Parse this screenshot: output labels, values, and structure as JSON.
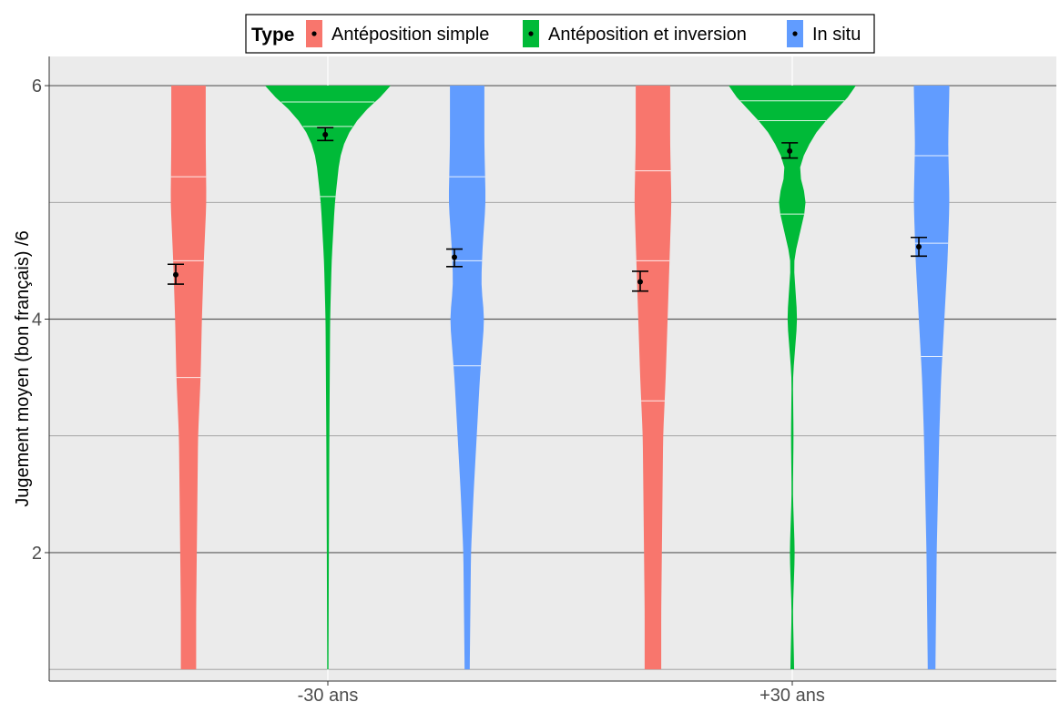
{
  "chart_data": {
    "type": "violin",
    "title": "",
    "xlabel": "",
    "ylabel": "Jugement moyen (bon français) /6",
    "ylim": [
      0.9,
      6.25
    ],
    "yticks": [
      2,
      4,
      6
    ],
    "grid": true,
    "legend": {
      "title": "Type",
      "position": "top"
    },
    "categories": [
      "-30 ans",
      "+30 ans"
    ],
    "series": [
      {
        "name": "Antéposition simple",
        "color": "#F8766D",
        "groups": [
          {
            "category": "-30 ans",
            "mean": 4.38,
            "ci_low": 4.3,
            "ci_high": 4.47,
            "quantiles": [
              3.5,
              4.5,
              5.22
            ],
            "range": [
              1.0,
              6.0
            ],
            "density": [
              [
                1.0,
                0.6
              ],
              [
                1.5,
                0.6
              ],
              [
                2.0,
                0.65
              ],
              [
                2.5,
                0.7
              ],
              [
                3.0,
                0.75
              ],
              [
                3.5,
                0.95
              ],
              [
                4.0,
                1.05
              ],
              [
                4.5,
                1.2
              ],
              [
                5.0,
                1.4
              ],
              [
                5.5,
                1.35
              ],
              [
                6.0,
                1.35
              ]
            ]
          },
          {
            "category": "+30 ans",
            "mean": 4.32,
            "ci_low": 4.24,
            "ci_high": 4.41,
            "quantiles": [
              3.3,
              4.5,
              5.27
            ],
            "range": [
              1.0,
              6.0
            ],
            "density": [
              [
                1.0,
                0.65
              ],
              [
                1.5,
                0.65
              ],
              [
                2.0,
                0.7
              ],
              [
                2.5,
                0.75
              ],
              [
                3.0,
                0.8
              ],
              [
                3.5,
                1.0
              ],
              [
                4.0,
                1.15
              ],
              [
                4.5,
                1.3
              ],
              [
                5.0,
                1.45
              ],
              [
                5.5,
                1.35
              ],
              [
                6.0,
                1.35
              ]
            ]
          }
        ]
      },
      {
        "name": "Antéposition et inversion",
        "color": "#00BA38",
        "groups": [
          {
            "category": "-30 ans",
            "mean": 5.58,
            "ci_low": 5.53,
            "ci_high": 5.64,
            "quantiles": [
              5.05,
              5.65,
              5.86
            ],
            "range": [
              1.0,
              6.0
            ],
            "density": [
              [
                1.0,
                0.05
              ],
              [
                2.0,
                0.08
              ],
              [
                3.0,
                0.12
              ],
              [
                4.0,
                0.18
              ],
              [
                4.5,
                0.3
              ],
              [
                5.0,
                0.55
              ],
              [
                5.2,
                0.75
              ],
              [
                5.4,
                0.95
              ],
              [
                5.6,
                1.6
              ],
              [
                5.8,
                3.0
              ],
              [
                6.0,
                5.2
              ]
            ]
          },
          {
            "category": "+30 ans",
            "mean": 5.44,
            "ci_low": 5.38,
            "ci_high": 5.51,
            "quantiles": [
              4.9,
              5.7,
              5.87
            ],
            "range": [
              1.0,
              6.0
            ],
            "density": [
              [
                1.0,
                0.15
              ],
              [
                1.5,
                0.05
              ],
              [
                2.0,
                0.2
              ],
              [
                2.5,
                0.05
              ],
              [
                3.0,
                0.1
              ],
              [
                3.5,
                0.05
              ],
              [
                4.0,
                0.4
              ],
              [
                4.5,
                0.1
              ],
              [
                5.0,
                1.15
              ],
              [
                5.3,
                0.45
              ],
              [
                5.6,
                1.8
              ],
              [
                5.8,
                3.5
              ],
              [
                6.0,
                5.2
              ]
            ]
          }
        ]
      },
      {
        "name": "In situ",
        "color": "#619CFF",
        "groups": [
          {
            "category": "-30 ans",
            "mean": 4.53,
            "ci_low": 4.45,
            "ci_high": 4.6,
            "quantiles": [
              3.6,
              4.5,
              5.22
            ],
            "range": [
              1.0,
              6.0
            ],
            "density": [
              [
                1.0,
                0.2
              ],
              [
                1.5,
                0.25
              ],
              [
                2.0,
                0.3
              ],
              [
                2.5,
                0.5
              ],
              [
                3.0,
                0.75
              ],
              [
                3.5,
                1.0
              ],
              [
                4.0,
                1.35
              ],
              [
                4.3,
                1.1
              ],
              [
                4.6,
                1.2
              ],
              [
                5.0,
                1.45
              ],
              [
                5.5,
                1.35
              ],
              [
                6.0,
                1.35
              ]
            ]
          },
          {
            "category": "+30 ans",
            "mean": 4.62,
            "ci_low": 4.54,
            "ci_high": 4.7,
            "quantiles": [
              3.68,
              4.65,
              5.4
            ],
            "range": [
              1.0,
              6.0
            ],
            "density": [
              [
                1.0,
                0.3
              ],
              [
                1.5,
                0.35
              ],
              [
                2.0,
                0.4
              ],
              [
                2.5,
                0.5
              ],
              [
                3.0,
                0.6
              ],
              [
                3.5,
                0.75
              ],
              [
                4.0,
                1.0
              ],
              [
                4.5,
                1.25
              ],
              [
                5.0,
                1.4
              ],
              [
                5.5,
                1.3
              ],
              [
                6.0,
                1.4
              ]
            ]
          }
        ]
      }
    ]
  }
}
